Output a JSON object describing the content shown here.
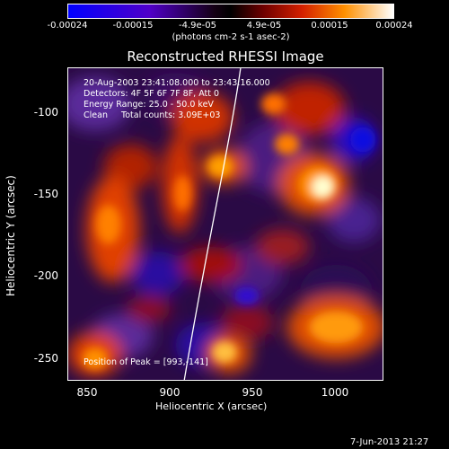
{
  "colorbar": {
    "ticks": [
      "-0.00024",
      "-0.00015",
      "-4.9e-05",
      "4.9e-05",
      "0.00015",
      "0.00024"
    ],
    "units": "(photons cm-2 s-1 asec-2)"
  },
  "title": "Reconstructed RHESSI Image",
  "info": {
    "line1": "20-Aug-2003 23:41:08.000 to 23:43:16.000",
    "line2": "Detectors: 4F 5F 6F 7F 8F, Att 0",
    "line3": "Energy Range: 25.0 - 50.0 keV",
    "line4": "Clean     Total counts: 3.09E+03",
    "peak": "Position of Peak = [993,-141]"
  },
  "axes": {
    "xlabel": "Heliocentric X (arcsec)",
    "ylabel": "Heliocentric Y (arcsec)",
    "xticks": [
      "850",
      "900",
      "950",
      "1000"
    ],
    "yticks": [
      "-100",
      "-150",
      "-200",
      "-250"
    ]
  },
  "timestamp": "7-Jun-2013 21:27"
}
